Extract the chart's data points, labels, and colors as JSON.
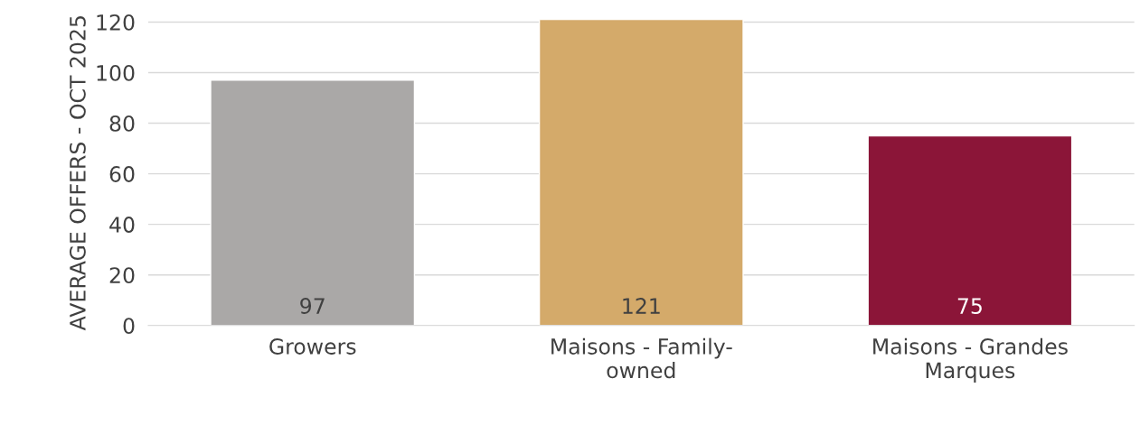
{
  "chart_data": {
    "type": "bar",
    "ylabel": "AVERAGE OFFERS - OCT 2025",
    "categories": [
      "Growers",
      "Maisons - Family-owned",
      "Maisons - Grandes Marques"
    ],
    "values": [
      97,
      121,
      75
    ],
    "colors": [
      "#aaa8a7",
      "#d4aa6a",
      "#8b1538"
    ],
    "ylim": [
      0,
      121
    ],
    "yticks": [
      0,
      20,
      40,
      60,
      80,
      100,
      120
    ],
    "grid": "y",
    "data_labels": true
  }
}
